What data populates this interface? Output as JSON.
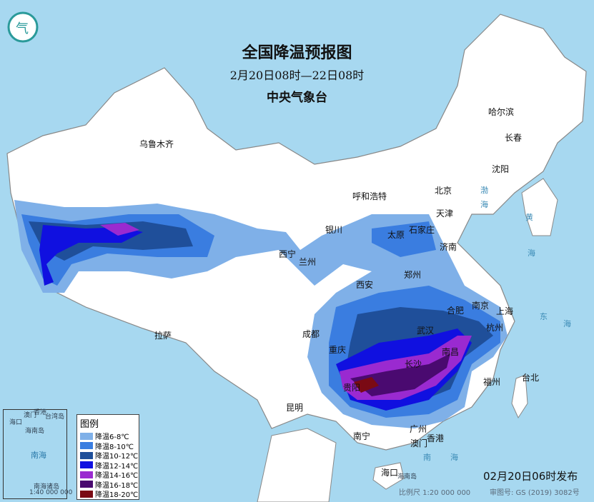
{
  "title": "全国降温预报图",
  "period": "2月20日08时—22日08时",
  "issuer": "中央气象台",
  "logo_text": "气",
  "publish_time": "02月20日06时发布",
  "scale": "比例尺 1:20 000 000",
  "map_number": "审图号: GS (2019) 3082号",
  "colors": {
    "sea": "#a7d8f0",
    "land": "#ffffff",
    "border": "#8a8a8a"
  },
  "legend": {
    "title": "图例",
    "items": [
      {
        "label": "降温6-8℃",
        "color": "#7fb0e8"
      },
      {
        "label": "降温8-10℃",
        "color": "#3a7de0"
      },
      {
        "label": "降温10-12℃",
        "color": "#1f4f9a"
      },
      {
        "label": "降温12-14℃",
        "color": "#1010e0"
      },
      {
        "label": "降温14-16℃",
        "color": "#9a2ad0"
      },
      {
        "label": "降温16-18℃",
        "color": "#4a0a70"
      },
      {
        "label": "降温18-20℃",
        "color": "#7a0a14"
      }
    ]
  },
  "inset": {
    "labels": [
      "海口",
      "海南岛",
      "南海",
      "台湾岛",
      "澳门",
      "香港",
      "南海诸岛"
    ],
    "scale": "1:40 000 000"
  },
  "sea_labels": [
    "南",
    "海",
    "东",
    "海",
    "渤",
    "海",
    "黄",
    "海"
  ],
  "island_label": "海南岛",
  "cities": [
    "乌鲁木齐",
    "哈尔滨",
    "长春",
    "沈阳",
    "呼和浩特",
    "北京",
    "天津",
    "石家庄",
    "太原",
    "济南",
    "银川",
    "西宁",
    "兰州",
    "郑州",
    "西安",
    "合肥",
    "南京",
    "上海",
    "武汉",
    "杭州",
    "成都",
    "重庆",
    "长沙",
    "南昌",
    "福州",
    "台北",
    "贵阳",
    "昆明",
    "拉萨",
    "南宁",
    "广州",
    "香港",
    "澳门",
    "海口"
  ]
}
